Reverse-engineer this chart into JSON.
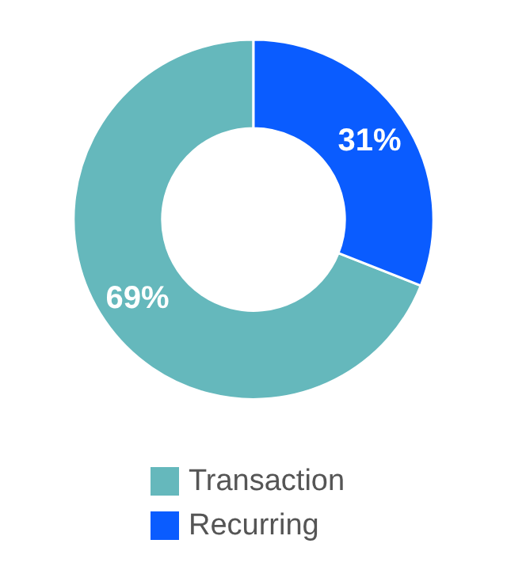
{
  "chart_data": {
    "type": "donut",
    "categories": [
      "Transaction",
      "Recurring"
    ],
    "values": [
      69,
      31
    ],
    "colors": [
      "#65b8bc",
      "#0a5cff"
    ],
    "value_labels": [
      "69%",
      "31%"
    ],
    "legend": "bottom"
  }
}
